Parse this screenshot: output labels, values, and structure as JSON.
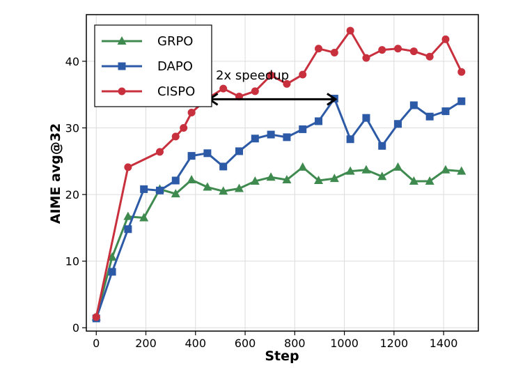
{
  "chart_data": {
    "type": "line",
    "xlabel": "Step",
    "ylabel": "AIME avg@32",
    "xlim": [
      -40,
      1540
    ],
    "ylim": [
      -0.5,
      47
    ],
    "x_ticks": [
      0,
      200,
      400,
      600,
      800,
      1000,
      1200,
      1400
    ],
    "y_ticks": [
      0,
      10,
      20,
      30,
      40
    ],
    "grid": true,
    "legend_position": "top-left",
    "annotation": {
      "text": "2x speedup",
      "arrow_from": [
        450,
        34.3
      ],
      "arrow_to": [
        970,
        34.3
      ]
    },
    "series": [
      {
        "name": "GRPO",
        "color": "#3f8a4f",
        "marker": "triangle",
        "x": [
          0,
          64,
          128,
          192,
          256,
          320,
          384,
          448,
          512,
          576,
          640,
          704,
          768,
          832,
          896,
          960,
          1024,
          1088,
          1152,
          1216,
          1280,
          1344,
          1408,
          1472
        ],
        "y": [
          1.6,
          10.6,
          16.7,
          16.5,
          20.8,
          20.1,
          22.2,
          21.1,
          20.5,
          20.9,
          22.0,
          22.6,
          22.2,
          24.1,
          22.1,
          22.4,
          23.5,
          23.7,
          22.7,
          24.1,
          22.0,
          22.0,
          23.7,
          23.5
        ]
      },
      {
        "name": "DAPO",
        "color": "#2c5aa6",
        "marker": "square",
        "x": [
          0,
          64,
          128,
          192,
          256,
          320,
          384,
          448,
          512,
          576,
          640,
          704,
          768,
          832,
          896,
          960,
          1024,
          1088,
          1152,
          1216,
          1280,
          1344,
          1408,
          1472
        ],
        "y": [
          1.4,
          8.4,
          14.8,
          20.8,
          20.6,
          22.1,
          25.8,
          26.2,
          24.2,
          26.5,
          28.4,
          29.0,
          28.6,
          29.8,
          31.0,
          34.4,
          28.3,
          31.5,
          27.3,
          30.6,
          33.4,
          31.7,
          32.5,
          34.0
        ]
      },
      {
        "name": "CISPO",
        "color": "#c9303e",
        "marker": "circle",
        "x": [
          0,
          128,
          256,
          320,
          352,
          384,
          448,
          512,
          576,
          640,
          704,
          768,
          832,
          896,
          960,
          1024,
          1088,
          1152,
          1216,
          1280,
          1344,
          1408,
          1472
        ],
        "y": [
          1.6,
          24.1,
          26.4,
          28.7,
          30.0,
          32.3,
          34.4,
          35.9,
          34.7,
          35.5,
          37.9,
          36.6,
          38.0,
          41.9,
          41.3,
          44.6,
          40.5,
          41.7,
          41.9,
          41.5,
          40.7,
          43.3,
          38.4
        ]
      }
    ]
  }
}
